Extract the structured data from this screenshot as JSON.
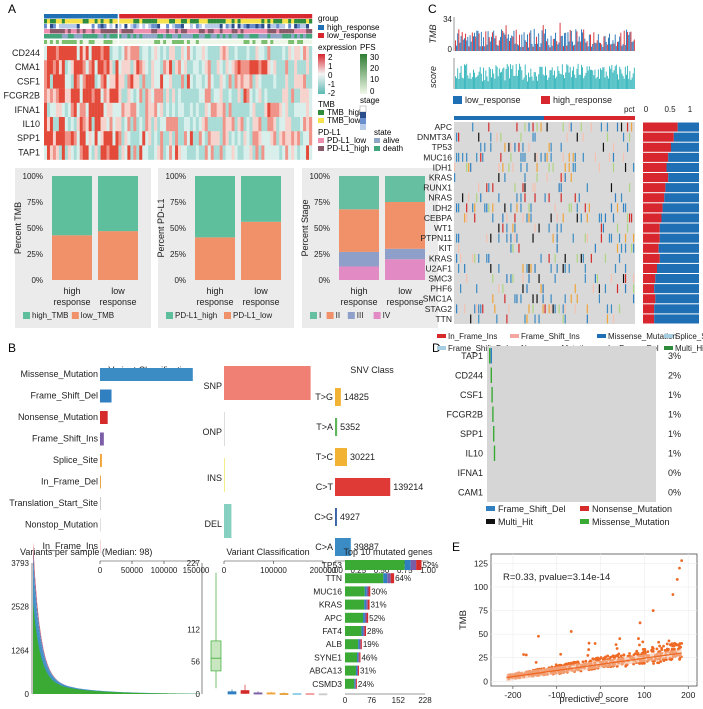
{
  "panel_labels": {
    "a": "A",
    "b": "B",
    "c": "C",
    "d": "D",
    "e": "E"
  },
  "colors": {
    "high": "#1f6fb4",
    "low": "#d7262e",
    "tmb_high": "#2e8b3c",
    "tmb_low": "#f5e14a",
    "pdl1_low": "#ef8fb0",
    "pdl1_high": "#8a5a6b",
    "alive": "#8fa6c7",
    "death": "#43a57c",
    "bar_green": "#5dbf9b",
    "bar_orange": "#f0916a",
    "stage_I": "#66bfa0",
    "stage_II": "#f0916a",
    "stage_III": "#8ea0ca",
    "stage_IV": "#e28ac3",
    "missense": "#3b8cc4",
    "frameshift_del": "#2f7fc1",
    "nonsense": "#d52b2b",
    "frameshift_ins": "#7b5ea7",
    "splice": "#f0a43a",
    "inframe_del": "#e6a33d",
    "inframe_ins": "#d62828",
    "multi_hit": "#111111",
    "snp": "#f07f74",
    "ins": "#f3ee8a",
    "del": "#86d0c2",
    "tg": "#f2b233",
    "ta": "#5db75a",
    "tc": "#f2b233",
    "ct": "#e03a36",
    "cg": "#3b64a8",
    "ca": "#3b8cc4",
    "scatter": "#ee6a25",
    "heat_hi": "#e34a3a",
    "heat_lo": "#7fc7c1"
  },
  "panel_a": {
    "legend": {
      "group_title": "group",
      "group": [
        "high_response",
        "low_response"
      ],
      "expr_title": "expression",
      "expr_ticks": [
        "2",
        "1",
        "0",
        "-1",
        "-2"
      ],
      "pfs_title": "PFS",
      "pfs_ticks": [
        "30",
        "20",
        "10",
        "0"
      ],
      "tmb_title": "TMB",
      "tmb": [
        "TMB_high",
        "TMB_low"
      ],
      "stage_title": "stage",
      "pdl1_title": "PD-L1",
      "pdl1": [
        "PD-L1_low",
        "PD-L1_high"
      ],
      "state_title": "state",
      "state": [
        "alive",
        "death"
      ]
    },
    "genes": [
      "CD244",
      "CMA1",
      "CSF1",
      "FCGR2B",
      "IFNA1",
      "IL10",
      "SPP1",
      "TAP1"
    ]
  },
  "chart_data": [
    {
      "id": "a_tmb",
      "type": "bar",
      "stacked": true,
      "ylabel": "Percent TMB",
      "categories": [
        "high\nresponse",
        "low\nresponse"
      ],
      "series": [
        {
          "name": "low_TMB",
          "values": [
            43,
            47
          ]
        },
        {
          "name": "high_TMB",
          "values": [
            57,
            53
          ]
        }
      ],
      "yticks": [
        "0%",
        "25%",
        "50%",
        "75%",
        "100%"
      ]
    },
    {
      "id": "a_pdl1",
      "type": "bar",
      "stacked": true,
      "ylabel": "Percent PD-L1",
      "categories": [
        "high\nresponse",
        "low\nresponse"
      ],
      "series": [
        {
          "name": "PD-L1_low",
          "values": [
            41,
            56
          ]
        },
        {
          "name": "PD-L1_high",
          "values": [
            59,
            44
          ]
        }
      ],
      "yticks": [
        "0%",
        "25%",
        "50%",
        "75%",
        "100%"
      ]
    },
    {
      "id": "a_stage",
      "type": "bar",
      "stacked": true,
      "ylabel": "Percent Stage",
      "categories": [
        "high\nresponse",
        "low\nresponse"
      ],
      "series": [
        {
          "name": "IV",
          "values": [
            13,
            20
          ]
        },
        {
          "name": "III",
          "values": [
            14,
            10
          ]
        },
        {
          "name": "II",
          "values": [
            41,
            45
          ]
        },
        {
          "name": "I",
          "values": [
            32,
            25
          ]
        }
      ],
      "yticks": [
        "0%",
        "25%",
        "50%",
        "75%",
        "100%"
      ]
    },
    {
      "id": "b_varclass",
      "type": "bar",
      "orientation": "horizontal",
      "title": "Variant Classification",
      "categories": [
        "Missense_Mutation",
        "Frame_Shift_Del",
        "Nonsense_Mutation",
        "Frame_Shift_Ins",
        "Splice_Site",
        "In_Frame_Del",
        "Translation_Start_Site",
        "Nonstop_Mutation",
        "In_Frame_Ins"
      ],
      "values": [
        145000,
        18000,
        12000,
        6000,
        3000,
        1500,
        800,
        500,
        300
      ],
      "xlim": [
        0,
        150000
      ],
      "xticks": [
        "0",
        "50000",
        "100000",
        "150000"
      ]
    },
    {
      "id": "b_vartype",
      "type": "bar",
      "orientation": "horizontal",
      "title": "Variant Type",
      "categories": [
        "SNP",
        "ONP",
        "INS",
        "DEL"
      ],
      "values": [
        175000,
        500,
        2000,
        15000
      ],
      "xlim": [
        0,
        200000
      ],
      "xticks": [
        "0",
        "100000",
        "200000"
      ]
    },
    {
      "id": "b_snv",
      "type": "bar",
      "orientation": "horizontal",
      "title": "SNV Class",
      "categories": [
        "T>G",
        "T>A",
        "T>C",
        "C>T",
        "C>G",
        "C>A"
      ],
      "values": [
        14825,
        5352,
        30221,
        139214,
        4927,
        39887
      ],
      "fractions": [
        0.063,
        0.023,
        0.129,
        0.594,
        0.021,
        0.17
      ],
      "labels": [
        "14825",
        "5352",
        "30221",
        "139214",
        "4927",
        "39887"
      ],
      "xlim": [
        0,
        1
      ],
      "xticks": [
        "0.00",
        "0.25",
        "0.50",
        "0.75",
        "1.00"
      ]
    },
    {
      "id": "b_vps",
      "type": "area",
      "title": "Variants per sample (Median: 98)",
      "yticks": [
        "0",
        "1264",
        "2528",
        "3793"
      ],
      "ylim": [
        0,
        3793
      ]
    },
    {
      "id": "b_box",
      "type": "box",
      "title": "Variant Classification",
      "yticks": [
        "0",
        "56",
        "112",
        "227"
      ],
      "ylim": [
        0,
        227
      ]
    },
    {
      "id": "b_top10",
      "type": "bar",
      "orientation": "horizontal",
      "stacked": true,
      "title": "Top 10 mutated genes",
      "categories": [
        "TP53",
        "TTN",
        "MUC16",
        "KRAS",
        "APC",
        "FAT4",
        "ALB",
        "SYNE1",
        "ABCA13",
        "CSMD3"
      ],
      "values": [
        218,
        140,
        72,
        70,
        66,
        60,
        48,
        44,
        40,
        34
      ],
      "labels": [
        "52%",
        "64%",
        "30%",
        "31%",
        "52%",
        "28%",
        "19%",
        "46%",
        "31%",
        "24%"
      ],
      "xlim": [
        0,
        228
      ],
      "xticks": [
        "0",
        "76",
        "152",
        "228"
      ]
    },
    {
      "id": "c_tmb",
      "type": "bar",
      "ylabel": "TMB",
      "yticks": [
        "0",
        "34"
      ],
      "ylim": [
        0,
        34
      ]
    },
    {
      "id": "c_score",
      "type": "bar",
      "ylabel": "score"
    },
    {
      "id": "c_pct",
      "type": "bar",
      "orientation": "horizontal",
      "stacked": true,
      "title": "pct",
      "xticks": [
        "0",
        "0.5",
        "1"
      ],
      "categories": [
        "APC",
        "DNMT3A",
        "TP53",
        "MUC16",
        "IDH1",
        "KRAS",
        "RUNX1",
        "NRAS",
        "IDH2",
        "CEBPA",
        "WT1",
        "PTPN11",
        "KIT",
        "KRAS",
        "U2AF1",
        "SMC3",
        "PHF6",
        "SMC1A",
        "STAG2",
        "TTN"
      ],
      "series": [
        {
          "name": "high_response",
          "values": [
            0.62,
            0.55,
            0.5,
            0.45,
            0.42,
            0.45,
            0.4,
            0.38,
            0.35,
            0.33,
            0.3,
            0.3,
            0.28,
            0.3,
            0.25,
            0.22,
            0.2,
            0.22,
            0.2,
            0.2
          ]
        }
      ]
    },
    {
      "id": "d_onco",
      "type": "heatmap",
      "genes": [
        "TAP1",
        "CD244",
        "CSF1",
        "FCGR2B",
        "SPP1",
        "IL10",
        "IFNA1",
        "CAM1"
      ],
      "pct": [
        "3%",
        "2%",
        "1%",
        "1%",
        "1%",
        "1%",
        "0%",
        "0%"
      ]
    },
    {
      "id": "e_scatter",
      "type": "scatter",
      "xlabel": "predictive_score",
      "ylabel": "TMB",
      "annotation": "R=0.33, pvalue=3.14e-14",
      "xlim": [
        -250,
        220
      ],
      "ylim": [
        -5,
        135
      ],
      "xticks": [
        "-200",
        "-100",
        "0",
        "100",
        "200"
      ],
      "yticks": [
        "0",
        "25",
        "50",
        "75",
        "100",
        "125"
      ],
      "fit": {
        "x": [
          -215,
          185
        ],
        "y": [
          4,
          30
        ]
      }
    }
  ],
  "panel_b": {
    "vtype_labels": [
      "SNP",
      "ONP",
      "INS",
      "DEL"
    ]
  },
  "panel_c": {
    "legend": [
      "low_response",
      "high_response"
    ],
    "genes": [
      "APC",
      "DNMT3A",
      "TP53",
      "MUC16",
      "IDH1",
      "KRAS",
      "RUNX1",
      "NRAS",
      "IDH2",
      "CEBPA",
      "WT1",
      "PTPN11",
      "KIT",
      "KRAS",
      "U2AF1",
      "SMC3",
      "PHF6",
      "SMC1A",
      "STAG2",
      "TTN"
    ],
    "mut_legend": [
      "In_Frame_Ins",
      "Frame_Shift_Ins",
      "Missense_Mutation",
      "Splice_Site",
      "Frame_Shift_Del",
      "Nonsense_Mutation",
      "In_Frame_Del",
      "Multi_Hit"
    ]
  },
  "panel_d": {
    "legend": [
      "Frame_Shift_Del",
      "Nonsense_Mutation",
      "Multi_Hit",
      "Missense_Mutation"
    ]
  }
}
